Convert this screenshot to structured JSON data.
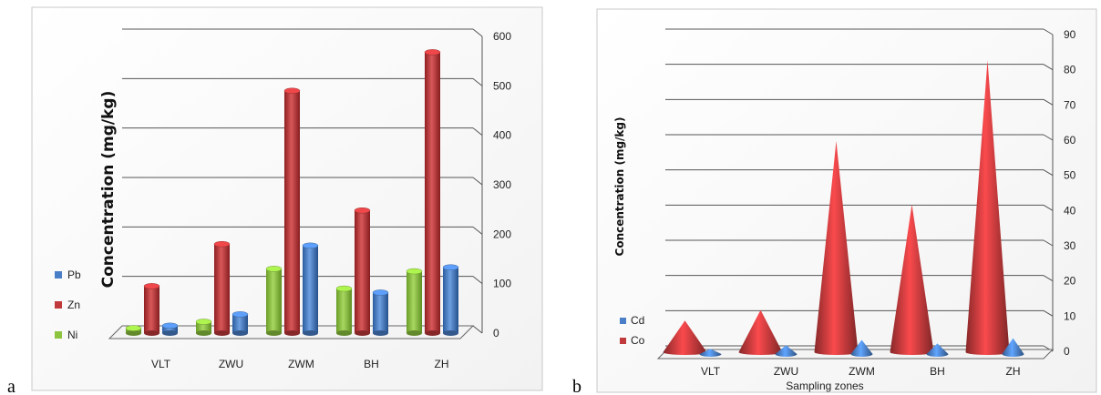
{
  "panels": {
    "a": "a",
    "b": "b"
  },
  "chart_data": [
    {
      "type": "bar",
      "ylabel": "Concentration (mg/kg)",
      "xlabel": "",
      "ylim": [
        0,
        600
      ],
      "yticks": [
        "0",
        "100",
        "200",
        "300",
        "400",
        "500",
        "600"
      ],
      "categories": [
        "VLT",
        "ZWU",
        "ZWM",
        "BH",
        "ZH"
      ],
      "grid": true,
      "legend_position": "left",
      "series": [
        {
          "name": "Ni",
          "color": "#8cc43f",
          "values": [
            10,
            23,
            130,
            90,
            125
          ]
        },
        {
          "name": "Zn",
          "color": "#c0393b",
          "values": [
            95,
            180,
            490,
            248,
            568
          ]
        },
        {
          "name": "Pb",
          "color": "#4a7fc8",
          "values": [
            15,
            38,
            177,
            82,
            133
          ]
        }
      ],
      "legend_order": [
        "Pb",
        "Zn",
        "Ni"
      ]
    },
    {
      "type": "bar",
      "shape": "cone",
      "ylabel": "Concentration (mg/kg)",
      "xlabel": "Sampling zones",
      "ylim": [
        0,
        90
      ],
      "yticks": [
        "0",
        "10",
        "20",
        "30",
        "40",
        "50",
        "60",
        "70",
        "80",
        "90"
      ],
      "categories": [
        "VLT",
        "ZWU",
        "ZWM",
        "BH",
        "ZH"
      ],
      "grid": true,
      "legend_position": "left",
      "series": [
        {
          "name": "Co",
          "color": "#c0393b",
          "values": [
            9,
            12,
            60,
            42,
            83
          ]
        },
        {
          "name": "Cd",
          "color": "#4a7fc8",
          "values": [
            1.5,
            2.5,
            4,
            3,
            4.5
          ]
        }
      ],
      "legend_order": [
        "Cd",
        "Co"
      ]
    }
  ]
}
